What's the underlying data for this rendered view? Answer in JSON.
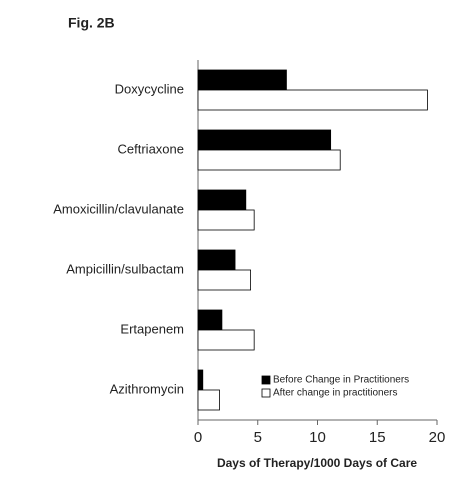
{
  "chart_data": {
    "type": "hbar",
    "title": "Fig. 2B",
    "categories": [
      "Doxycycline",
      "Ceftriaxone",
      "Amoxicillin/clavulanate",
      "Ampicillin/sulbactam",
      "Ertapenem",
      "Azithromycin"
    ],
    "series": [
      {
        "name": "Before Change in Practitioners",
        "color": "#000000",
        "values": [
          7.4,
          11.1,
          4.0,
          3.1,
          2.0,
          0.4
        ]
      },
      {
        "name": "After change in practitioners",
        "color": "#ffffff",
        "values": [
          19.2,
          11.9,
          4.7,
          4.4,
          4.7,
          1.8
        ]
      }
    ],
    "xlabel": "Days of Therapy/1000 Days of Care",
    "xlim": [
      0,
      20
    ],
    "xticks": [
      0,
      5,
      10,
      15,
      20
    ],
    "legend": "lower right"
  }
}
